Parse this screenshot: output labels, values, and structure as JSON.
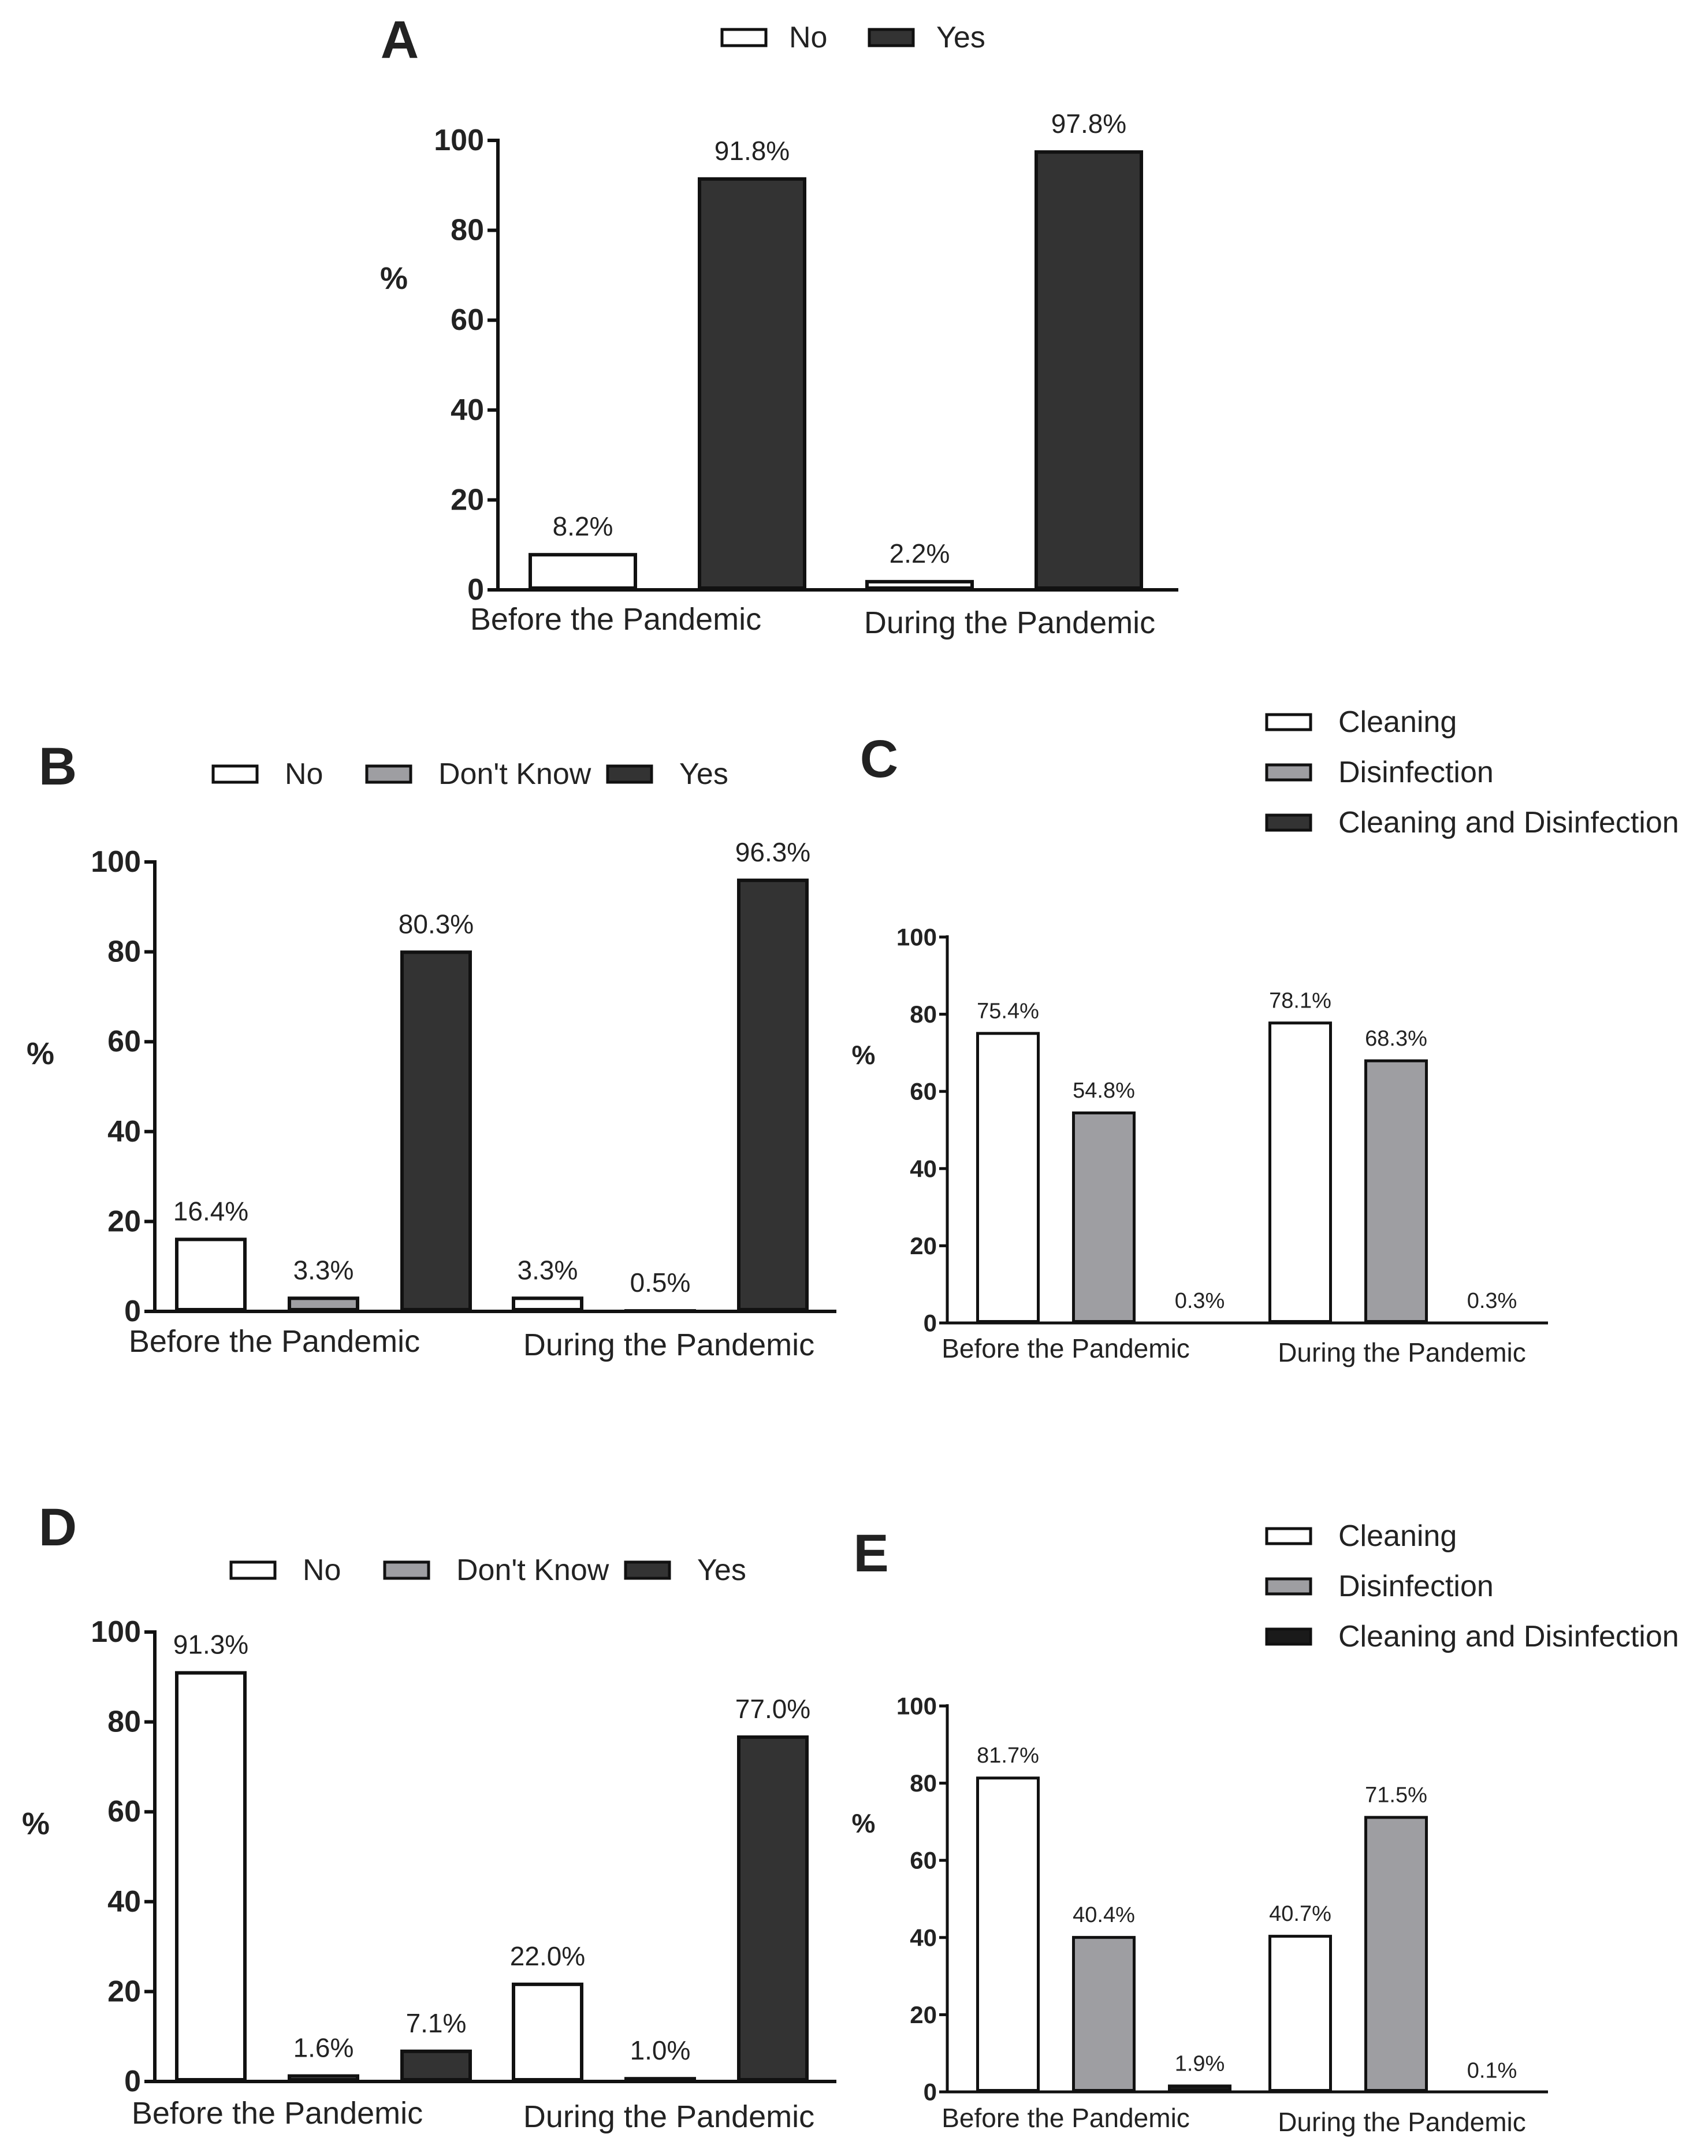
{
  "chart_data": [
    {
      "id": "A",
      "panel_label": "A",
      "type": "bar",
      "categories": [
        "Before the Pandemic",
        "During the Pandemic"
      ],
      "series": [
        {
          "name": "No",
          "values": [
            8.2,
            2.2
          ],
          "labels": [
            "8.2%",
            "2.2%"
          ],
          "color": "#ffffff"
        },
        {
          "name": "Yes",
          "values": [
            91.8,
            97.8
          ],
          "labels": [
            "91.8%",
            "97.8%"
          ],
          "color": "#333333"
        }
      ],
      "ylabel": "%",
      "ylim": [
        0,
        100
      ],
      "yticks": [
        0,
        20,
        40,
        60,
        80,
        100
      ],
      "legend_position": "top"
    },
    {
      "id": "B",
      "panel_label": "B",
      "type": "bar",
      "categories": [
        "Before the Pandemic",
        "During the Pandemic"
      ],
      "series": [
        {
          "name": "No",
          "values": [
            16.4,
            3.3
          ],
          "labels": [
            "16.4%",
            "3.3%"
          ],
          "color": "#ffffff"
        },
        {
          "name": "Don't Know",
          "values": [
            3.3,
            0.5
          ],
          "labels": [
            "3.3%",
            "0.5%"
          ],
          "color": "#9e9ea2"
        },
        {
          "name": "Yes",
          "values": [
            80.3,
            96.3
          ],
          "labels": [
            "80.3%",
            "96.3%"
          ],
          "color": "#333333"
        }
      ],
      "ylabel": "%",
      "ylim": [
        0,
        100
      ],
      "yticks": [
        0,
        20,
        40,
        60,
        80,
        100
      ],
      "legend_position": "top"
    },
    {
      "id": "C",
      "panel_label": "C",
      "type": "bar",
      "categories": [
        "Before the Pandemic",
        "During the Pandemic"
      ],
      "series": [
        {
          "name": "Cleaning",
          "values": [
            75.4,
            78.1
          ],
          "labels": [
            "75.4%",
            "78.1%"
          ],
          "color": "#ffffff"
        },
        {
          "name": "Disinfection",
          "values": [
            54.8,
            68.3
          ],
          "labels": [
            "54.8%",
            "68.3%"
          ],
          "color": "#9e9ea2"
        },
        {
          "name": "Cleaning and Disinfection",
          "values": [
            0.3,
            0.3
          ],
          "labels": [
            "0.3%",
            "0.3%"
          ],
          "color": "#333333"
        }
      ],
      "ylabel": "%",
      "ylim": [
        0,
        100
      ],
      "yticks": [
        0,
        20,
        40,
        60,
        80,
        100
      ],
      "legend_position": "top-right"
    },
    {
      "id": "D",
      "panel_label": "D",
      "type": "bar",
      "categories": [
        "Before the Pandemic",
        "During the Pandemic"
      ],
      "series": [
        {
          "name": "No",
          "values": [
            91.3,
            22.0
          ],
          "labels": [
            "91.3%",
            "22.0%"
          ],
          "color": "#ffffff"
        },
        {
          "name": "Don't Know",
          "values": [
            1.6,
            1.0
          ],
          "labels": [
            "1.6%",
            "1.0%"
          ],
          "color": "#9e9ea2"
        },
        {
          "name": "Yes",
          "values": [
            7.1,
            77.0
          ],
          "labels": [
            "7.1%",
            "77.0%"
          ],
          "color": "#333333"
        }
      ],
      "ylabel": "%",
      "ylim": [
        0,
        100
      ],
      "yticks": [
        0,
        20,
        40,
        60,
        80,
        100
      ],
      "legend_position": "top"
    },
    {
      "id": "E",
      "panel_label": "E",
      "type": "bar",
      "categories": [
        "Before the Pandemic",
        "During the Pandemic"
      ],
      "series": [
        {
          "name": "Cleaning",
          "values": [
            81.7,
            40.7
          ],
          "labels": [
            "81.7%",
            "40.7%"
          ],
          "color": "#ffffff"
        },
        {
          "name": "Disinfection",
          "values": [
            40.4,
            71.5
          ],
          "labels": [
            "40.4%",
            "71.5%"
          ],
          "color": "#9e9ea2"
        },
        {
          "name": "Cleaning and Disinfection",
          "values": [
            1.9,
            0.1
          ],
          "labels": [
            "1.9%",
            "0.1%"
          ],
          "color": "#1a1a1a"
        }
      ],
      "ylabel": "%",
      "ylim": [
        0,
        100
      ],
      "yticks": [
        0,
        20,
        40,
        60,
        80,
        100
      ],
      "legend_position": "top-right"
    }
  ]
}
